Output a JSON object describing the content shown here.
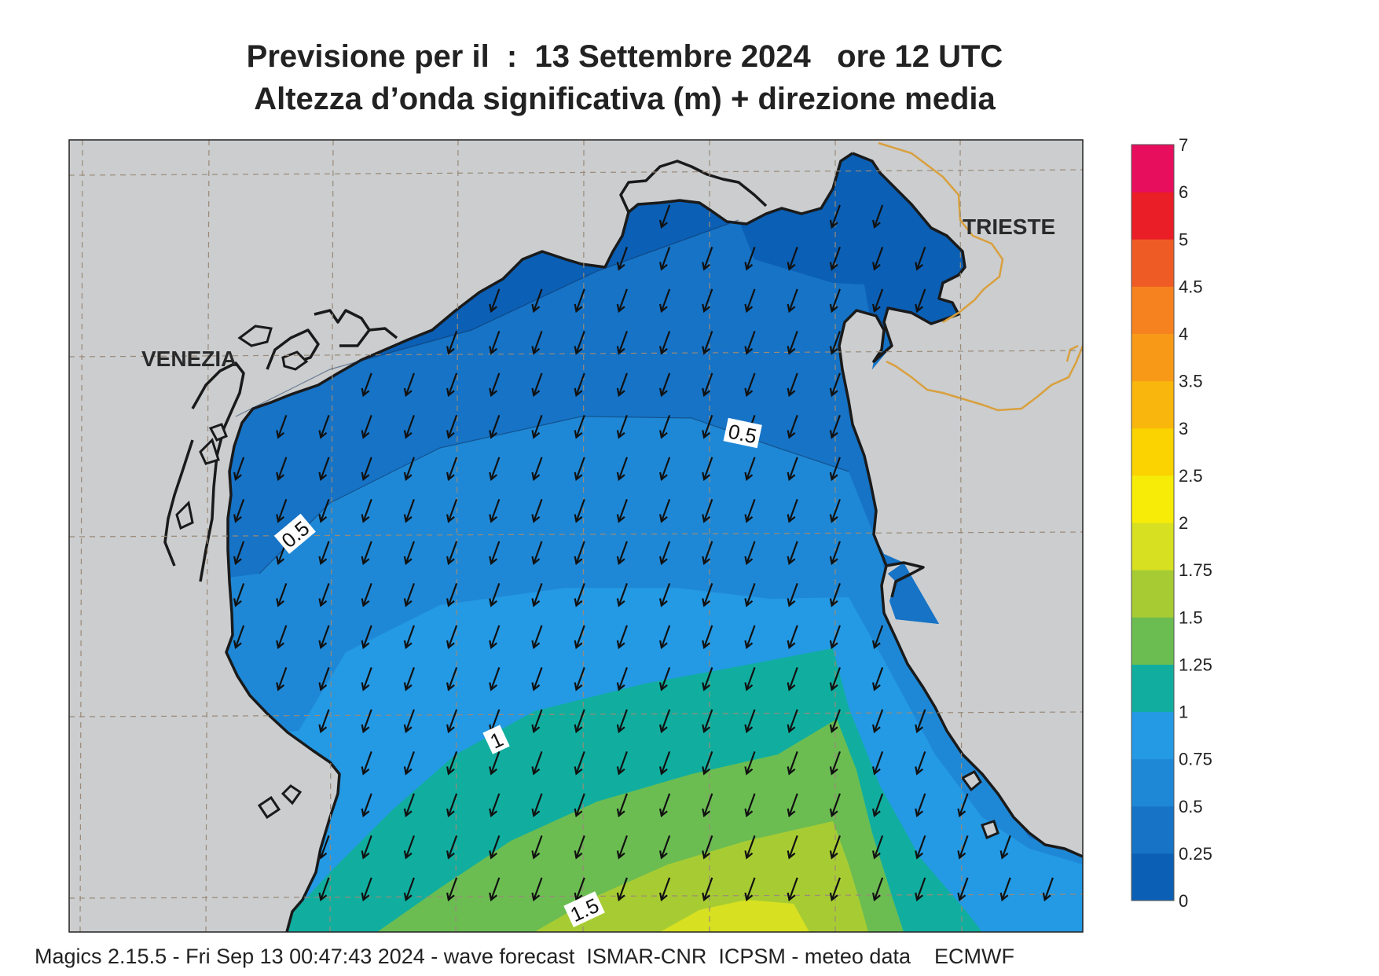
{
  "title_line1": "Previsione per il  :  13 Settembre 2024   ore 12 UTC",
  "title_line2": "Altezza d’onda significativa (m) + direzione media",
  "footer": "Magics 2.15.5 - Fri Sep 13 00:47:43 2024 - wave forecast  ISMAR-CNR  ICPSM - meteo data    ECMWF",
  "cities": {
    "venezia": "VENEZIA",
    "trieste": "TRIESTE"
  },
  "contour_labels": {
    "a": "0.5",
    "b": "0.5",
    "c": "1",
    "d": "1.5"
  },
  "legend": {
    "labels": [
      "0",
      "0.25",
      "0.5",
      "0.75",
      "1",
      "1.25",
      "1.5",
      "1.75",
      "2",
      "2.5",
      "3",
      "3.5",
      "4",
      "4.5",
      "5",
      "6",
      "7"
    ],
    "colors": [
      "#0b5fb4",
      "#1673c6",
      "#1f88d6",
      "#2499e4",
      "#11ae9f",
      "#6bbd52",
      "#a7cc33",
      "#d7e021",
      "#f6ec07",
      "#fbd300",
      "#f9b60d",
      "#f89a18",
      "#f6821f",
      "#ef5b24",
      "#e91e26",
      "#e80e5e"
    ]
  },
  "colors": {
    "land": "#cbcdcf",
    "band_0_025": "#0b5fb4",
    "band_025_05": "#1673c6",
    "band_05_075": "#1f88d6",
    "band_075_1": "#2499e4",
    "band_1_125": "#11ae9f",
    "band_125_15": "#6bbd52",
    "band_15_175": "#a7cc33",
    "band_175_2": "#d7e021",
    "border": "#d9a03e"
  },
  "wave_direction_deg": 200
}
